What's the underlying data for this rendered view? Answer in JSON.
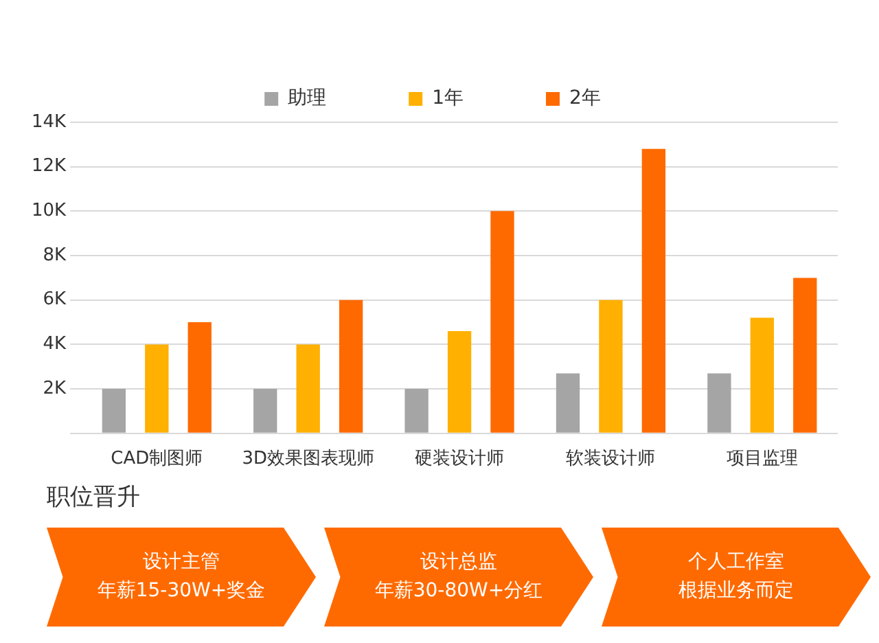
{
  "chart_data": {
    "type": "bar",
    "categories": [
      "CAD制图师",
      "3D效果图表现师",
      "硬装设计师",
      "软装设计师",
      "项目监理"
    ],
    "series": [
      {
        "name": "助理",
        "color": "#a5a5a5",
        "values": [
          2,
          2,
          2,
          2.7,
          2.7
        ]
      },
      {
        "name": "1年",
        "color": "#ffb000",
        "values": [
          4,
          4,
          4.6,
          6,
          5.2
        ]
      },
      {
        "name": "2年",
        "color": "#ff6a00",
        "values": [
          5,
          6,
          10,
          12.8,
          7
        ]
      }
    ],
    "ylim": [
      0,
      14
    ],
    "yticks": [
      {
        "value": 0,
        "label": null
      },
      {
        "value": 2,
        "label": "2K"
      },
      {
        "value": 4,
        "label": "4K"
      },
      {
        "value": 6,
        "label": "6K"
      },
      {
        "value": 8,
        "label": "8K"
      },
      {
        "value": 10,
        "label": "10K"
      },
      {
        "value": 12,
        "label": "12K"
      },
      {
        "value": 14,
        "label": "14K"
      }
    ],
    "grid": "y",
    "legend": "top",
    "annotations": [
      "职位晋升",
      "设计主管",
      "年薪15-30W+奖金",
      "设计总监",
      "年薪30-80W+分红",
      "个人工作室",
      "根据业务而定"
    ]
  }
}
